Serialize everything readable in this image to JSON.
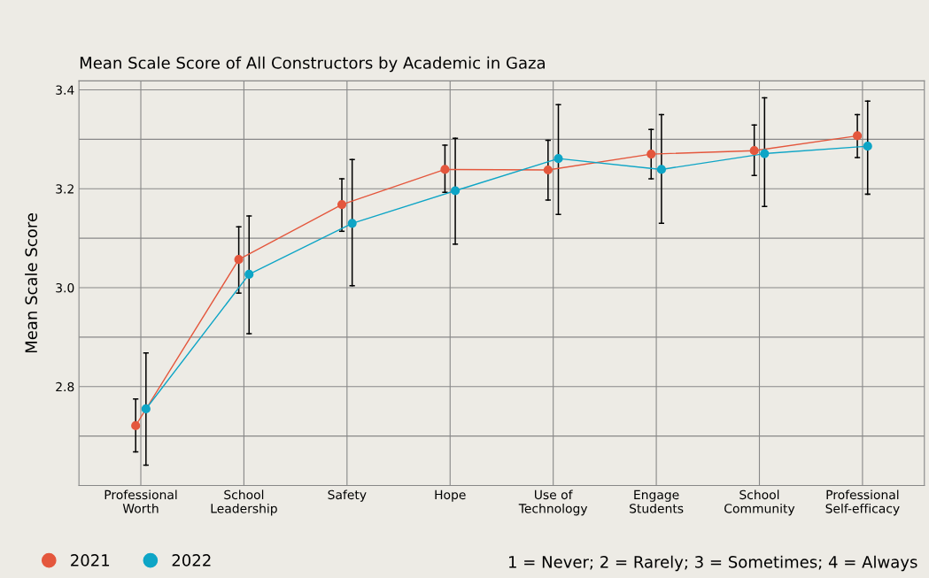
{
  "chart_data": {
    "type": "line",
    "title": "Mean Scale Score of All Constructors by Academic in Gaza",
    "ylabel": "Mean Scale Score",
    "categories": [
      "Professional\nWorth",
      "School\nLeadership",
      "Safety",
      "Hope",
      "Use of\nTechnology",
      "Engage\nStudents",
      "School\nCommunity",
      "Professional\nSelf-efficacy"
    ],
    "series": [
      {
        "name": "2021",
        "color": "#e4573d",
        "values": [
          2.721,
          3.057,
          3.168,
          3.239,
          3.238,
          3.27,
          3.277,
          3.307
        ],
        "errors": [
          [
            2.668,
            2.775
          ],
          [
            2.989,
            3.123
          ],
          [
            3.114,
            3.22
          ],
          [
            3.193,
            3.288
          ],
          [
            3.177,
            3.298
          ],
          [
            3.22,
            3.32
          ],
          [
            3.227,
            3.329
          ],
          [
            3.263,
            3.35
          ]
        ]
      },
      {
        "name": "2022",
        "color": "#0ea5c6",
        "values": [
          2.755,
          3.027,
          3.13,
          3.196,
          3.261,
          3.239,
          3.271,
          3.286
        ],
        "errors": [
          [
            2.641,
            2.868
          ],
          [
            2.907,
            3.145
          ],
          [
            3.004,
            3.259
          ],
          [
            3.088,
            3.302
          ],
          [
            3.148,
            3.37
          ],
          [
            3.13,
            3.35
          ],
          [
            3.164,
            3.384
          ],
          [
            3.189,
            3.377
          ]
        ]
      }
    ],
    "ylim": [
      2.6,
      3.418
    ],
    "yticks": [
      {
        "value": 2.7,
        "label": null
      },
      2.8,
      {
        "value": 2.9,
        "label": null
      },
      {
        "value": 3.0,
        "label": "3.0"
      },
      {
        "value": 3.1,
        "label": null
      },
      3.2,
      {
        "value": 3.3,
        "label": null
      },
      3.4
    ],
    "grid": true,
    "legend": "bottom left",
    "marker": "circle",
    "line_style": "solid",
    "annotations": [
      "1 = Never; 2 = Rarely; 3 = Sometimes; 4 = Always"
    ]
  }
}
